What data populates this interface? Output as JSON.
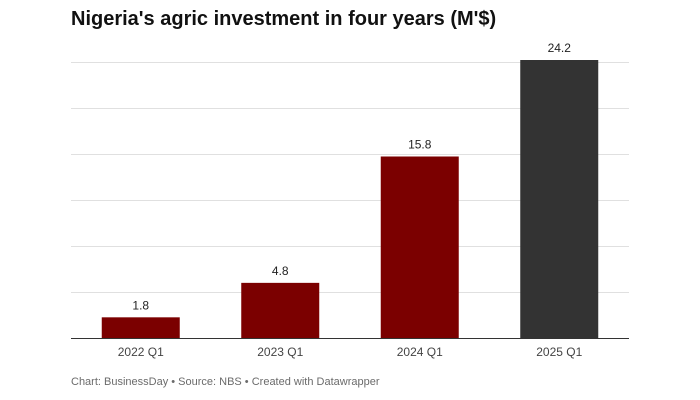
{
  "title": "Nigeria's agric investment in four years (M'$)",
  "footer": "Chart: BusinessDay • Source: NBS • Created with Datawrapper",
  "chart_data": {
    "type": "bar",
    "title": "Nigeria's agric investment in four years (M'$)",
    "categories": [
      "2022 Q1",
      "2023 Q1",
      "2024 Q1",
      "2025 Q1"
    ],
    "values": [
      1.8,
      4.8,
      15.8,
      24.2
    ],
    "value_labels": [
      "1.8",
      "4.8",
      "15.8",
      "24.2"
    ],
    "bar_colors": [
      "#7b0000",
      "#7b0000",
      "#7b0000",
      "#333333"
    ],
    "ylim": [
      0,
      24.2
    ],
    "grid": true,
    "grid_values": [
      4,
      8,
      12,
      16,
      20,
      24
    ],
    "xlabel": "",
    "ylabel": ""
  },
  "colors": {
    "highlight_bar": "#7b0000",
    "latest_bar": "#333333",
    "gridline": "#e0e0e0",
    "baseline": "#333333",
    "footer_text": "#6b6b6b"
  }
}
